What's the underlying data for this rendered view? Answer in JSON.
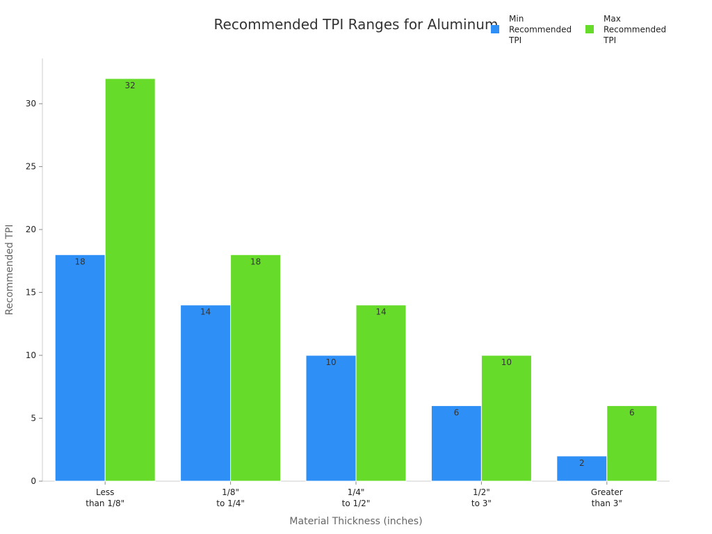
{
  "chart_data": {
    "type": "bar",
    "title": "Recommended TPI Ranges for Aluminum",
    "xlabel": "Material Thickness (inches)",
    "ylabel": "Recommended TPI",
    "categories": [
      [
        "Less",
        "than 1/8\""
      ],
      [
        "1/8\"",
        "to 1/4\""
      ],
      [
        "1/4\"",
        "to 1/2\""
      ],
      [
        "1/2\"",
        "to 3\""
      ],
      [
        "Greater",
        "than 3\""
      ]
    ],
    "series": [
      {
        "name": [
          "Min",
          "Recommended",
          "TPI"
        ],
        "color": "#2e90f7",
        "values": [
          18,
          14,
          10,
          6,
          2
        ]
      },
      {
        "name": [
          "Max",
          "Recommended",
          "TPI"
        ],
        "color": "#66db2a",
        "values": [
          32,
          18,
          14,
          10,
          6
        ]
      }
    ],
    "yticks": [
      0,
      5,
      10,
      15,
      20,
      25,
      30
    ],
    "ylim": [
      0,
      33.6
    ],
    "grid": false,
    "legend_position": "top-right"
  }
}
